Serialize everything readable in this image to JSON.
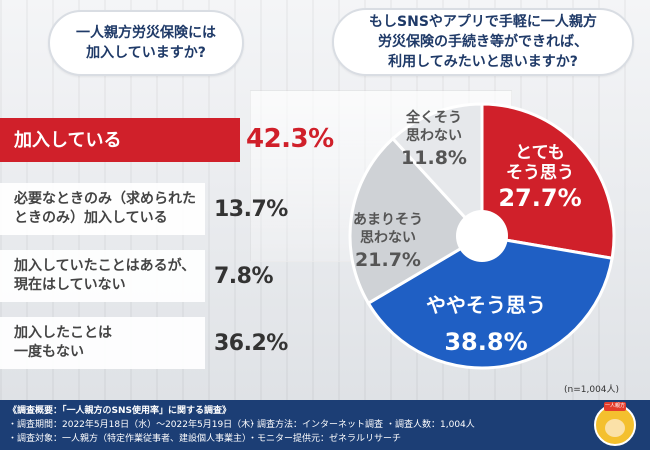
{
  "questions": {
    "left": "一人親方労災保険には\n加入していますか?",
    "right": "もしSNSやアプリで手軽に一人親方\n労災保険の手続き等ができれば、\n利用してみたいと思いますか?"
  },
  "colors": {
    "red": "#d0202a",
    "blue": "#1f5fc4",
    "gray1": "#cfd2d6",
    "gray2": "#e6e8eb",
    "navy": "#1c3e75"
  },
  "chart_data": [
    {
      "type": "bar",
      "categories": [
        "加入している",
        "必要なときのみ（求められた\nときのみ）加入している",
        "加入していたことはあるが、\n現在はしていない",
        "加入したことは\n一度もない"
      ],
      "values": [
        42.3,
        13.7,
        7.8,
        36.2
      ],
      "labels": [
        "42.3%",
        "13.7%",
        "7.8%",
        "36.2%"
      ]
    },
    {
      "type": "pie",
      "categories": [
        "とても\nそう思う",
        "ややそう思う",
        "あまりそう\n思わない",
        "全くそう\n思わない"
      ],
      "values": [
        27.7,
        38.8,
        21.7,
        11.8
      ],
      "labels": [
        "27.7%",
        "38.8%",
        "21.7%",
        "11.8%"
      ],
      "note": "(n=1,004人)"
    }
  ],
  "footer": {
    "title": "《調査概要：「一人親方のSNS使用率」に関する調査》",
    "period": "・調査期間：2022年5月18日（水）～2022年5月19日（木）",
    "target": "・調査対象：一人親方（特定作業従事者、建設個人事業主）",
    "method": "・調査方法：インターネット調査",
    "provider": "・モニター提供元：ゼネラルリサーチ",
    "count": "・調査人数：1,004人",
    "mascot_tag": "一人親方"
  }
}
